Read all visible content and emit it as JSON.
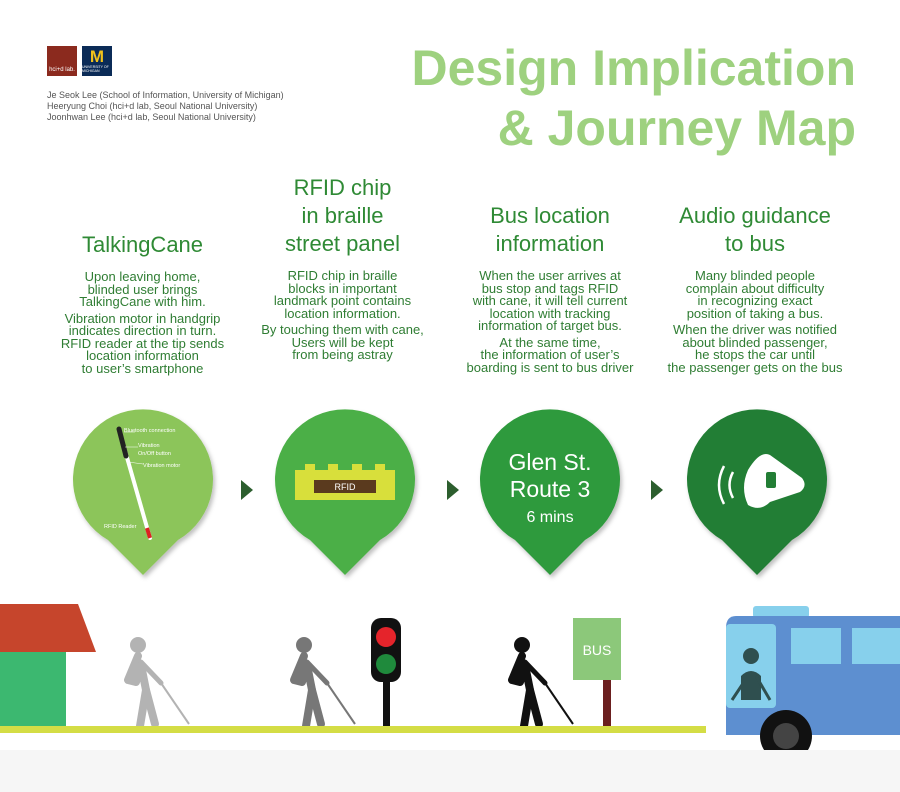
{
  "header": {
    "title_line1": "Design Implication",
    "title_line2": "& Journey Map",
    "logo_left_text": "hci+d lab.",
    "logo_right_mark": "M",
    "logo_right_text": "UNIVERSITY OF MICHIGAN",
    "authors": [
      "Je Seok Lee (School of Information, University of Michigan)",
      "Heeryung Choi (hci+d lab, Seoul National University)",
      "Joonhwan Lee (hci+d lab, Seoul National University)"
    ]
  },
  "columns": [
    {
      "title_lines": [
        "TalkingCane"
      ],
      "paragraphs": [
        [
          "Upon leaving home,",
          "blinded user brings",
          "TalkingCane with him."
        ],
        [
          "Vibration motor in handgrip",
          "indicates direction in turn.",
          "RFID reader at the tip sends",
          "location information",
          "to user’s smartphone"
        ]
      ]
    },
    {
      "title_lines": [
        "RFID chip",
        "in braille",
        "street panel"
      ],
      "paragraphs": [
        [
          "RFID chip in braille",
          "blocks in important",
          "landmark point contains",
          "location information."
        ],
        [
          "By touching them with cane,",
          "Users will be kept",
          "from being astray"
        ]
      ]
    },
    {
      "title_lines": [
        "Bus location",
        "information"
      ],
      "paragraphs": [
        [
          "When the user arrives at",
          "bus stop and tags RFID",
          "with cane, it will tell current",
          "location with tracking",
          "information of target bus."
        ],
        [
          "At the same time,",
          "the information of user’s",
          "boarding is sent to bus driver"
        ]
      ]
    },
    {
      "title_lines": [
        "Audio guidance",
        "to bus"
      ],
      "paragraphs": [
        [
          "Many blinded people",
          "complain about difficulty",
          "in recognizing exact",
          "position of taking a bus."
        ],
        [
          "When the driver was notified",
          "about blinded passenger,",
          "he stops the car until",
          "the passenger gets on the bus"
        ]
      ]
    }
  ],
  "pins": {
    "cane_labels": {
      "bluetooth": "Bluetooth connection",
      "vibration": "Vibration",
      "onoff": "On/Off button",
      "motor": "Vibration motor",
      "rfid": "RFID Reader"
    },
    "rfid_label": "RFID",
    "bus_line1": "Glen St.",
    "bus_line2": "Route 3",
    "bus_line3": "6 mins"
  },
  "scene": {
    "bus_stop_sign": "BUS"
  },
  "colors": {
    "title_green": "#9ed17f",
    "text_green": "#2f7d33",
    "pin_light": "#8cc55a",
    "pin_mid": "#4caf47",
    "pin_dark": "#2f9a3c",
    "pin_darkest": "#237e35",
    "ground": "#d4dd45",
    "bus_body": "#5d8fd0",
    "bus_window": "#87d0ec",
    "house_roof": "#c6452c",
    "house_wall": "#3cb870"
  }
}
